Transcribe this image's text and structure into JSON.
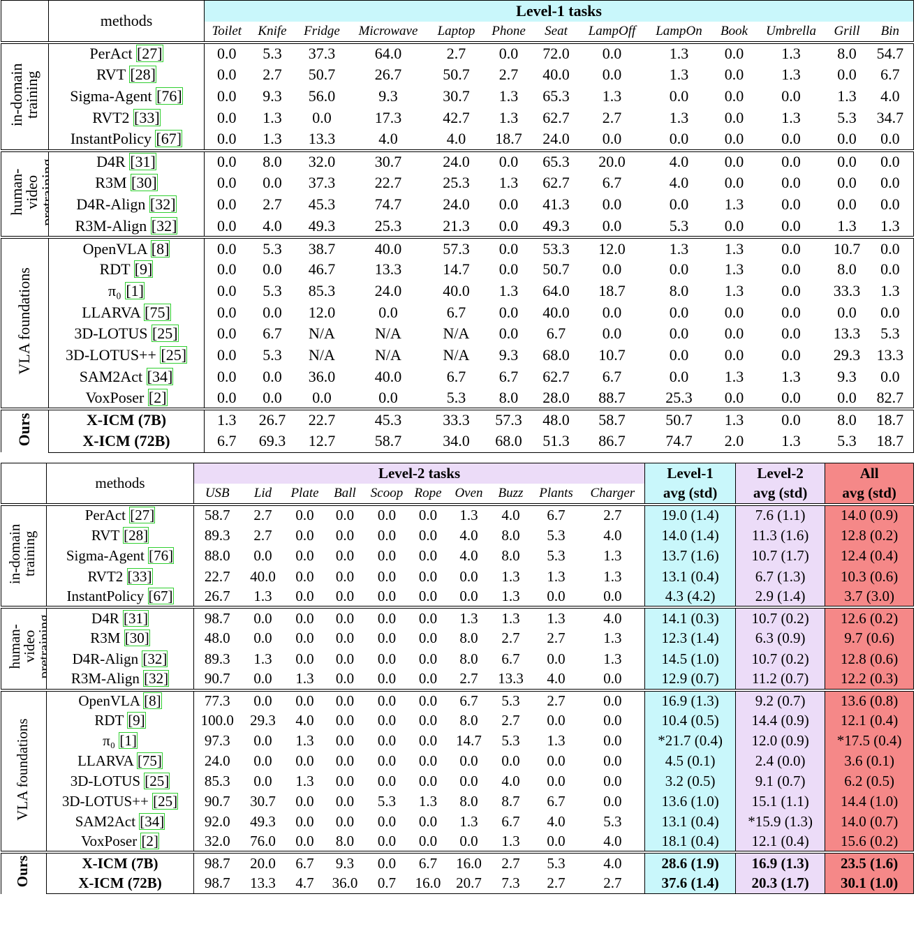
{
  "table1": {
    "header": "methods",
    "group_title": "Level-1 tasks",
    "header_color": "#c9f7fb",
    "columns": [
      "Toilet",
      "Knife",
      "Fridge",
      "Microwave",
      "Laptop",
      "Phone",
      "Seat",
      "LampOff",
      "LampOn",
      "Book",
      "Umbrella",
      "Grill",
      "Bin"
    ],
    "groups": [
      {
        "name": "in-domain training",
        "rows": [
          {
            "method": "PerAct",
            "ref": "[27]",
            "cells": [
              "0.0",
              "5.3",
              "37.3",
              "64.0",
              "2.7",
              "0.0",
              "72.0",
              "0.0",
              "1.3",
              "0.0",
              "1.3",
              "8.0",
              "54.7"
            ]
          },
          {
            "method": "RVT",
            "ref": "[28]",
            "cells": [
              "0.0",
              "2.7",
              "50.7",
              "26.7",
              "50.7",
              "2.7",
              "40.0",
              "0.0",
              "1.3",
              "0.0",
              "1.3",
              "0.0",
              "6.7"
            ]
          },
          {
            "method": "Sigma-Agent",
            "ref": "[76]",
            "cells": [
              "0.0",
              "9.3",
              "56.0",
              "9.3",
              "30.7",
              "1.3",
              "65.3",
              "1.3",
              "0.0",
              "0.0",
              "0.0",
              "1.3",
              "4.0"
            ]
          },
          {
            "method": "RVT2",
            "ref": "[33]",
            "cells": [
              "0.0",
              "1.3",
              "0.0",
              "17.3",
              "42.7",
              "1.3",
              "62.7",
              "2.7",
              "1.3",
              "0.0",
              "1.3",
              "5.3",
              "34.7"
            ]
          },
          {
            "method": "InstantPolicy",
            "ref": "[67]",
            "cells": [
              "0.0",
              "1.3",
              "13.3",
              "4.0",
              "4.0",
              "18.7",
              "24.0",
              "0.0",
              "0.0",
              "0.0",
              "0.0",
              "0.0",
              "0.0"
            ]
          }
        ]
      },
      {
        "name": "human-video pretraining",
        "rows": [
          {
            "method": "D4R",
            "ref": "[31]",
            "cells": [
              "0.0",
              "8.0",
              "32.0",
              "30.7",
              "24.0",
              "0.0",
              "65.3",
              "20.0",
              "4.0",
              "0.0",
              "0.0",
              "0.0",
              "0.0"
            ]
          },
          {
            "method": "R3M",
            "ref": "[30]",
            "cells": [
              "0.0",
              "0.0",
              "37.3",
              "22.7",
              "25.3",
              "1.3",
              "62.7",
              "6.7",
              "4.0",
              "0.0",
              "0.0",
              "0.0",
              "0.0"
            ]
          },
          {
            "method": "D4R-Align",
            "ref": "[32]",
            "cells": [
              "0.0",
              "2.7",
              "45.3",
              "74.7",
              "24.0",
              "0.0",
              "41.3",
              "0.0",
              "0.0",
              "1.3",
              "0.0",
              "0.0",
              "0.0"
            ]
          },
          {
            "method": "R3M-Align",
            "ref": "[32]",
            "cells": [
              "0.0",
              "4.0",
              "49.3",
              "25.3",
              "21.3",
              "0.0",
              "49.3",
              "0.0",
              "5.3",
              "0.0",
              "0.0",
              "1.3",
              "1.3"
            ]
          }
        ]
      },
      {
        "name": "VLA foundations",
        "rows": [
          {
            "method": "OpenVLA",
            "ref": "[8]",
            "cells": [
              "0.0",
              "5.3",
              "38.7",
              "40.0",
              "57.3",
              "0.0",
              "53.3",
              "12.0",
              "1.3",
              "1.3",
              "0.0",
              "10.7",
              "0.0"
            ]
          },
          {
            "method": "RDT",
            "ref": "[9]",
            "cells": [
              "0.0",
              "0.0",
              "46.7",
              "13.3",
              "14.7",
              "0.0",
              "50.7",
              "0.0",
              "0.0",
              "1.3",
              "0.0",
              "8.0",
              "0.0"
            ]
          },
          {
            "method": "π₀",
            "ref": "[1]",
            "cells": [
              "0.0",
              "5.3",
              "85.3",
              "24.0",
              "40.0",
              "1.3",
              "64.0",
              "18.7",
              "8.0",
              "1.3",
              "0.0",
              "33.3",
              "1.3"
            ]
          },
          {
            "method": "LLARVA",
            "ref": "[75]",
            "cells": [
              "0.0",
              "0.0",
              "12.0",
              "0.0",
              "6.7",
              "0.0",
              "40.0",
              "0.0",
              "0.0",
              "0.0",
              "0.0",
              "0.0",
              "0.0"
            ]
          },
          {
            "method": "3D-LOTUS",
            "ref": "[25]",
            "cells": [
              "0.0",
              "6.7",
              "N/A",
              "N/A",
              "N/A",
              "0.0",
              "6.7",
              "0.0",
              "0.0",
              "0.0",
              "0.0",
              "13.3",
              "5.3"
            ]
          },
          {
            "method": "3D-LOTUS++",
            "ref": "[25]",
            "cells": [
              "0.0",
              "5.3",
              "N/A",
              "N/A",
              "N/A",
              "9.3",
              "68.0",
              "10.7",
              "0.0",
              "0.0",
              "0.0",
              "29.3",
              "13.3"
            ]
          },
          {
            "method": "SAM2Act",
            "ref": "[34]",
            "cells": [
              "0.0",
              "0.0",
              "36.0",
              "40.0",
              "6.7",
              "6.7",
              "62.7",
              "6.7",
              "0.0",
              "1.3",
              "1.3",
              "9.3",
              "0.0"
            ]
          },
          {
            "method": "VoxPoser",
            "ref": "[2]",
            "cells": [
              "0.0",
              "0.0",
              "0.0",
              "0.0",
              "5.3",
              "8.0",
              "28.0",
              "88.7",
              "25.3",
              "0.0",
              "0.0",
              "0.0",
              "82.7"
            ]
          }
        ]
      },
      {
        "name": "Ours",
        "bold": true,
        "rows": [
          {
            "method": "X-ICM (7B)",
            "cells": [
              "1.3",
              "26.7",
              "22.7",
              "45.3",
              "33.3",
              "57.3",
              "48.0",
              "58.7",
              "50.7",
              "1.3",
              "0.0",
              "8.0",
              "18.7"
            ]
          },
          {
            "method": "X-ICM (72B)",
            "cells": [
              "6.7",
              "69.3",
              "12.7",
              "58.7",
              "34.0",
              "68.0",
              "51.3",
              "86.7",
              "74.7",
              "2.0",
              "1.3",
              "5.3",
              "18.7"
            ]
          }
        ]
      }
    ]
  },
  "table2": {
    "header": "methods",
    "group_title": "Level-2 tasks",
    "header_color": "#ecdcf8",
    "columns": [
      "USB",
      "Lid",
      "Plate",
      "Ball",
      "Scoop",
      "Rope",
      "Oven",
      "Buzz",
      "Plants",
      "Charger"
    ],
    "avg_columns": [
      {
        "line1": "Level-1",
        "line2": "avg (std)",
        "color": "#c9f7fb"
      },
      {
        "line1": "Level-2",
        "line2": "avg (std)",
        "color": "#ecdcf8"
      },
      {
        "line1": "All",
        "line2": "avg (std)",
        "color": "#f58888"
      }
    ],
    "groups": [
      {
        "name": "in-domain training",
        "rows": [
          {
            "method": "PerAct",
            "ref": "[27]",
            "cells": [
              "58.7",
              "2.7",
              "0.0",
              "0.0",
              "0.0",
              "0.0",
              "1.3",
              "4.0",
              "6.7",
              "2.7"
            ],
            "avgs": [
              "19.0 (1.4)",
              "7.6 (1.1)",
              "14.0 (0.9)"
            ]
          },
          {
            "method": "RVT",
            "ref": "[28]",
            "cells": [
              "89.3",
              "2.7",
              "0.0",
              "0.0",
              "0.0",
              "0.0",
              "4.0",
              "8.0",
              "5.3",
              "4.0"
            ],
            "avgs": [
              "14.0 (1.4)",
              "11.3 (1.6)",
              "12.8 (0.2)"
            ]
          },
          {
            "method": "Sigma-Agent",
            "ref": "[76]",
            "cells": [
              "88.0",
              "0.0",
              "0.0",
              "0.0",
              "0.0",
              "0.0",
              "4.0",
              "8.0",
              "5.3",
              "1.3"
            ],
            "avgs": [
              "13.7 (1.6)",
              "10.7 (1.7)",
              "12.4 (0.4)"
            ]
          },
          {
            "method": "RVT2",
            "ref": "[33]",
            "cells": [
              "22.7",
              "40.0",
              "0.0",
              "0.0",
              "0.0",
              "0.0",
              "0.0",
              "1.3",
              "1.3",
              "1.3"
            ],
            "avgs": [
              "13.1 (0.4)",
              "6.7 (1.3)",
              "10.3 (0.6)"
            ]
          },
          {
            "method": "InstantPolicy",
            "ref": "[67]",
            "cells": [
              "26.7",
              "1.3",
              "0.0",
              "0.0",
              "0.0",
              "0.0",
              "0.0",
              "1.3",
              "0.0",
              "0.0"
            ],
            "avgs": [
              "4.3 (4.2)",
              "2.9 (1.4)",
              "3.7 (3.0)"
            ]
          }
        ]
      },
      {
        "name": "human-video pretraining",
        "rows": [
          {
            "method": "D4R",
            "ref": "[31]",
            "cells": [
              "98.7",
              "0.0",
              "0.0",
              "0.0",
              "0.0",
              "0.0",
              "1.3",
              "1.3",
              "1.3",
              "4.0"
            ],
            "avgs": [
              "14.1 (0.3)",
              "10.7 (0.2)",
              "12.6 (0.2)"
            ]
          },
          {
            "method": "R3M",
            "ref": "[30]",
            "cells": [
              "48.0",
              "0.0",
              "0.0",
              "0.0",
              "0.0",
              "0.0",
              "8.0",
              "2.7",
              "2.7",
              "1.3"
            ],
            "avgs": [
              "12.3 (1.4)",
              "6.3 (0.9)",
              "9.7 (0.6)"
            ]
          },
          {
            "method": "D4R-Align",
            "ref": "[32]",
            "cells": [
              "89.3",
              "1.3",
              "0.0",
              "0.0",
              "0.0",
              "0.0",
              "8.0",
              "6.7",
              "0.0",
              "1.3"
            ],
            "avgs": [
              "14.5 (1.0)",
              "10.7 (0.2)",
              "12.8 (0.6)"
            ]
          },
          {
            "method": "R3M-Align",
            "ref": "[32]",
            "cells": [
              "90.7",
              "0.0",
              "1.3",
              "0.0",
              "0.0",
              "0.0",
              "2.7",
              "13.3",
              "4.0",
              "0.0"
            ],
            "avgs": [
              "12.9 (0.7)",
              "11.2 (0.7)",
              "12.2 (0.3)"
            ]
          }
        ]
      },
      {
        "name": "VLA foundations",
        "rows": [
          {
            "method": "OpenVLA",
            "ref": "[8]",
            "cells": [
              "77.3",
              "0.0",
              "0.0",
              "0.0",
              "0.0",
              "0.0",
              "6.7",
              "5.3",
              "2.7",
              "0.0"
            ],
            "avgs": [
              "16.9 (1.3)",
              "9.2 (0.7)",
              "13.6 (0.8)"
            ]
          },
          {
            "method": "RDT",
            "ref": "[9]",
            "cells": [
              "100.0",
              "29.3",
              "4.0",
              "0.0",
              "0.0",
              "0.0",
              "8.0",
              "2.7",
              "0.0",
              "0.0"
            ],
            "avgs": [
              "10.4 (0.5)",
              "14.4 (0.9)",
              "12.1 (0.4)"
            ]
          },
          {
            "method": "π₀",
            "ref": "[1]",
            "cells": [
              "97.3",
              "0.0",
              "1.3",
              "0.0",
              "0.0",
              "0.0",
              "14.7",
              "5.3",
              "1.3",
              "0.0"
            ],
            "avgs": [
              "*21.7 (0.4)",
              "12.0 (0.9)",
              "*17.5 (0.4)"
            ]
          },
          {
            "method": "LLARVA",
            "ref": "[75]",
            "cells": [
              "24.0",
              "0.0",
              "0.0",
              "0.0",
              "0.0",
              "0.0",
              "0.0",
              "0.0",
              "0.0",
              "0.0"
            ],
            "avgs": [
              "4.5 (0.1)",
              "2.4 (0.0)",
              "3.6 (0.1)"
            ]
          },
          {
            "method": "3D-LOTUS",
            "ref": "[25]",
            "cells": [
              "85.3",
              "0.0",
              "1.3",
              "0.0",
              "0.0",
              "0.0",
              "0.0",
              "4.0",
              "0.0",
              "0.0"
            ],
            "avgs": [
              "3.2 (0.5)",
              "9.1 (0.7)",
              "6.2 (0.5)"
            ]
          },
          {
            "method": "3D-LOTUS++",
            "ref": "[25]",
            "cells": [
              "90.7",
              "30.7",
              "0.0",
              "0.0",
              "5.3",
              "1.3",
              "8.0",
              "8.7",
              "6.7",
              "0.0"
            ],
            "avgs": [
              "13.6 (1.0)",
              "15.1 (1.1)",
              "14.4 (1.0)"
            ]
          },
          {
            "method": "SAM2Act",
            "ref": "[34]",
            "cells": [
              "92.0",
              "49.3",
              "0.0",
              "0.0",
              "0.0",
              "0.0",
              "1.3",
              "6.7",
              "4.0",
              "5.3"
            ],
            "avgs": [
              "13.1 (0.4)",
              "*15.9 (1.3)",
              "14.0 (0.7)"
            ]
          },
          {
            "method": "VoxPoser",
            "ref": "[2]",
            "cells": [
              "32.0",
              "76.0",
              "0.0",
              "8.0",
              "0.0",
              "0.0",
              "0.0",
              "1.3",
              "0.0",
              "4.0"
            ],
            "avgs": [
              "18.1 (0.4)",
              "12.1 (0.4)",
              "15.6 (0.2)"
            ]
          }
        ]
      },
      {
        "name": "Ours",
        "bold": true,
        "rows": [
          {
            "method": "X-ICM (7B)",
            "cells": [
              "98.7",
              "20.0",
              "6.7",
              "9.3",
              "0.0",
              "6.7",
              "16.0",
              "2.7",
              "5.3",
              "4.0"
            ],
            "avgs": [
              "28.6 (1.9)",
              "16.9 (1.3)",
              "23.5 (1.6)"
            ]
          },
          {
            "method": "X-ICM (72B)",
            "cells": [
              "98.7",
              "13.3",
              "4.7",
              "36.0",
              "0.7",
              "16.0",
              "20.7",
              "7.3",
              "2.7",
              "2.7"
            ],
            "avgs": [
              "37.6 (1.4)",
              "20.3 (1.7)",
              "30.1 (1.0)"
            ]
          }
        ]
      }
    ]
  }
}
